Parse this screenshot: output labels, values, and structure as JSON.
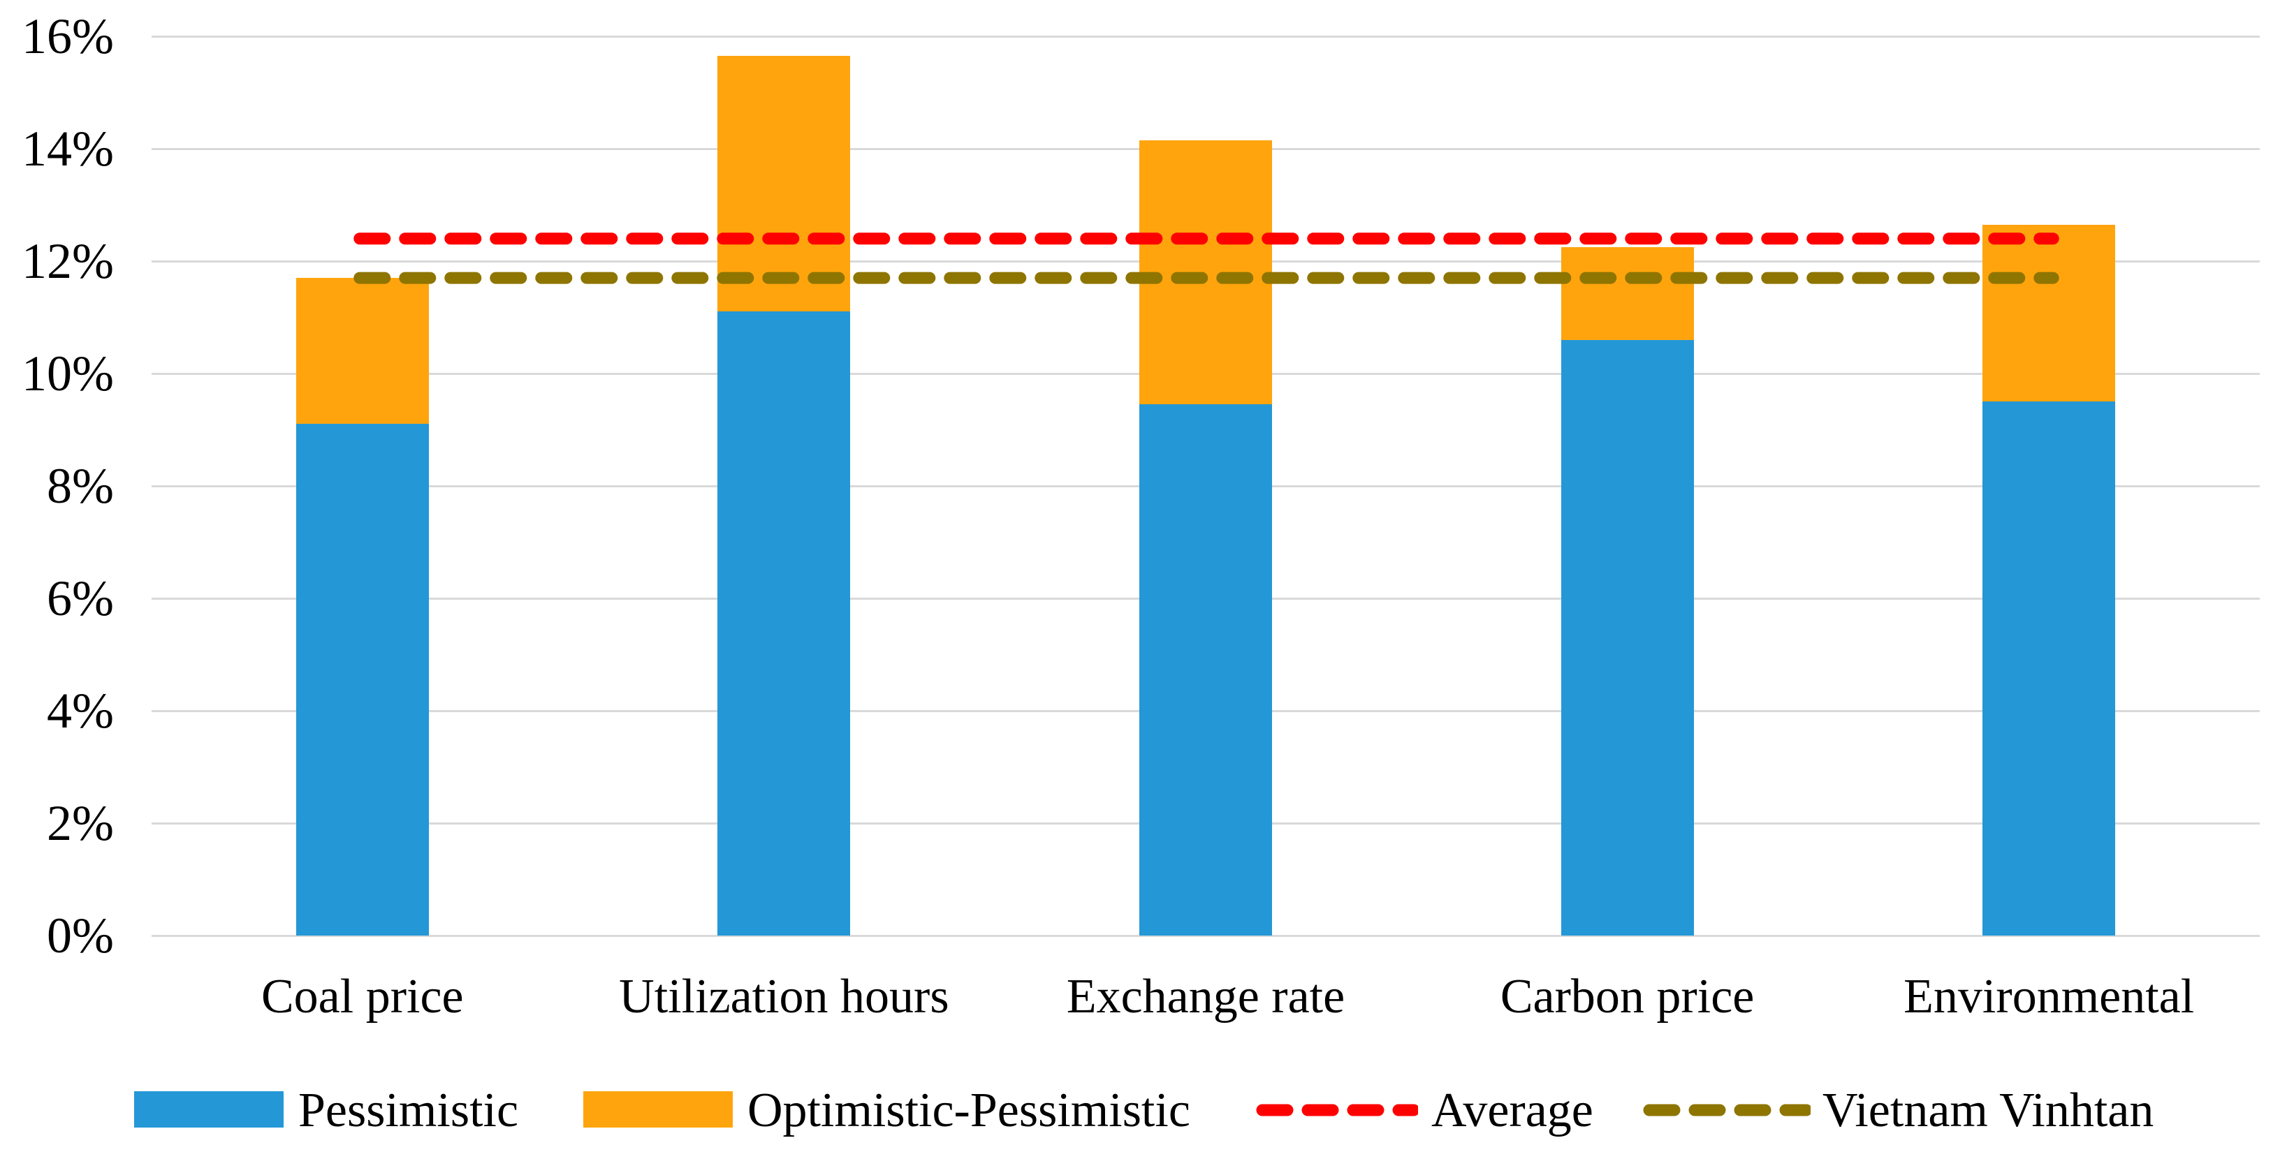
{
  "chart_data": {
    "type": "bar",
    "stacked": true,
    "title": "",
    "xlabel": "",
    "ylabel": "",
    "categories": [
      "Coal price",
      "Utilization hours",
      "Exchange rate",
      "Carbon price",
      "Environmental"
    ],
    "series": [
      {
        "name": "Pessimistic",
        "type": "bar",
        "color": "#2497D6",
        "values": [
          9.1,
          11.1,
          9.45,
          10.6,
          9.5
        ]
      },
      {
        "name": "Optimistic-Pessimistic",
        "type": "bar",
        "color": "#FFA40D",
        "values": [
          2.6,
          4.55,
          4.7,
          1.65,
          3.15
        ],
        "cumulative_totals": [
          11.7,
          15.65,
          14.15,
          12.25,
          12.65
        ]
      },
      {
        "name": "Average",
        "type": "dashed-line",
        "color": "#FF0000",
        "value": 12.4
      },
      {
        "name": "Vietnam Vinhtan",
        "type": "dashed-line",
        "color": "#8E7500",
        "value": 11.7
      }
    ],
    "y_ticks": [
      "0%",
      "2%",
      "4%",
      "6%",
      "8%",
      "10%",
      "12%",
      "14%",
      "16%"
    ],
    "ylim": [
      0,
      16
    ],
    "grid": true,
    "gridline_color": "#D9D9D9",
    "legend_position": "bottom"
  }
}
